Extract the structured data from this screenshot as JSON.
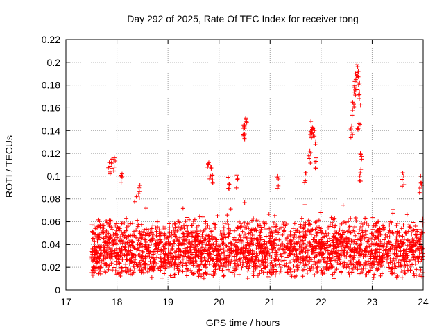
{
  "chart_data": {
    "type": "scatter",
    "title": "Day 292 of 2025, Rate Of TEC Index for receiver tong",
    "xlabel": "GPS time / hours",
    "ylabel": "ROTI / TECUs",
    "xlim": [
      17,
      24
    ],
    "ylim": [
      0,
      0.22
    ],
    "xticks": [
      "17",
      "18",
      "19",
      "20",
      "21",
      "22",
      "23",
      "24"
    ],
    "yticks": [
      "0",
      "0.02",
      "0.04",
      "0.06",
      "0.08",
      "0.1",
      "0.12",
      "0.14",
      "0.16",
      "0.18",
      "0.2",
      "0.22"
    ],
    "grid": true,
    "marker": "+",
    "color": "#ff0000",
    "data_start_hour": 17.5,
    "data_end_hour": 24.0,
    "typical_range": [
      0.01,
      0.065
    ],
    "notable_points": [
      {
        "x": 17.85,
        "y": 0.112
      },
      {
        "x": 17.9,
        "y": 0.115
      },
      {
        "x": 17.95,
        "y": 0.116
      },
      {
        "x": 18.1,
        "y": 0.102
      },
      {
        "x": 18.45,
        "y": 0.092
      },
      {
        "x": 19.8,
        "y": 0.112
      },
      {
        "x": 19.83,
        "y": 0.108
      },
      {
        "x": 19.87,
        "y": 0.101
      },
      {
        "x": 20.18,
        "y": 0.099
      },
      {
        "x": 20.35,
        "y": 0.101
      },
      {
        "x": 20.48,
        "y": 0.142
      },
      {
        "x": 20.5,
        "y": 0.145
      },
      {
        "x": 20.52,
        "y": 0.151
      },
      {
        "x": 21.15,
        "y": 0.1
      },
      {
        "x": 21.7,
        "y": 0.103
      },
      {
        "x": 21.8,
        "y": 0.148
      },
      {
        "x": 21.83,
        "y": 0.143
      },
      {
        "x": 21.87,
        "y": 0.14
      },
      {
        "x": 21.78,
        "y": 0.122
      },
      {
        "x": 21.9,
        "y": 0.116
      },
      {
        "x": 22.6,
        "y": 0.144
      },
      {
        "x": 22.62,
        "y": 0.165
      },
      {
        "x": 22.65,
        "y": 0.178
      },
      {
        "x": 22.68,
        "y": 0.185
      },
      {
        "x": 22.7,
        "y": 0.198
      },
      {
        "x": 22.73,
        "y": 0.192
      },
      {
        "x": 22.75,
        "y": 0.174
      },
      {
        "x": 22.74,
        "y": 0.146
      },
      {
        "x": 22.77,
        "y": 0.12
      },
      {
        "x": 22.78,
        "y": 0.106
      },
      {
        "x": 23.6,
        "y": 0.103
      },
      {
        "x": 23.95,
        "y": 0.1
      }
    ]
  }
}
